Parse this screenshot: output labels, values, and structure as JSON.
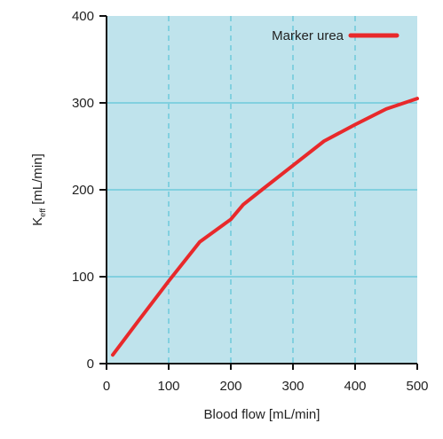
{
  "chart_data": {
    "type": "line",
    "title": "",
    "xlabel": "Blood flow [mL/min]",
    "ylabel_main": "K",
    "ylabel_sub": "eff",
    "ylabel_rest": " [mL/min]",
    "xlim": [
      0,
      500
    ],
    "ylim": [
      0,
      400
    ],
    "x_ticks": [
      0,
      100,
      200,
      300,
      400,
      500
    ],
    "y_ticks": [
      0,
      100,
      200,
      300,
      400
    ],
    "grid": {
      "x": "dashed vertical at 100, 200, 300, 400",
      "y": "solid horizontal at 100, 200, 300"
    },
    "background_color": "#bfe3ec",
    "grid_color": "#45bdd2",
    "legend": {
      "placement": "top-right",
      "entries": [
        {
          "label": "Marker urea",
          "color": "#e8292b"
        }
      ]
    },
    "series": [
      {
        "name": "Marker urea",
        "color": "#e8292b",
        "x": [
          10,
          50,
          100,
          150,
          200,
          220,
          250,
          300,
          350,
          400,
          450,
          500
        ],
        "y": [
          10,
          48,
          95,
          140,
          166,
          183,
          200,
          228,
          256,
          275,
          293,
          305
        ]
      }
    ]
  }
}
